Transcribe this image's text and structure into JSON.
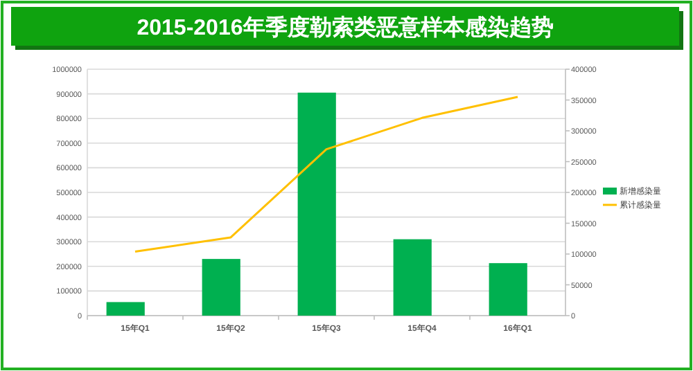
{
  "chart_data": {
    "type": "bar",
    "title": "2015-2016年季度勒索类恶意样本感染趋势",
    "categories": [
      "15年Q1",
      "15年Q2",
      "15年Q3",
      "15年Q4",
      "16年Q1"
    ],
    "series": [
      {
        "name": "新增感染量",
        "color": "#00b050",
        "values": [
          55000,
          230000,
          905000,
          310000,
          213000
        ]
      },
      {
        "name": "累计感染量",
        "type": "line",
        "axis": "y2",
        "color": "#ffc000",
        "values": [
          104000,
          127000,
          270000,
          321000,
          355000
        ]
      }
    ],
    "ylim": [
      0,
      1000000
    ],
    "yticks": [
      0,
      100000,
      200000,
      300000,
      400000,
      500000,
      600000,
      700000,
      800000,
      900000,
      1000000
    ],
    "y2lim": [
      0,
      400000
    ],
    "y2ticks": [
      0,
      50000,
      100000,
      150000,
      200000,
      250000,
      300000,
      350000,
      400000
    ],
    "grid": "y",
    "legend": "right",
    "marker": "none"
  }
}
